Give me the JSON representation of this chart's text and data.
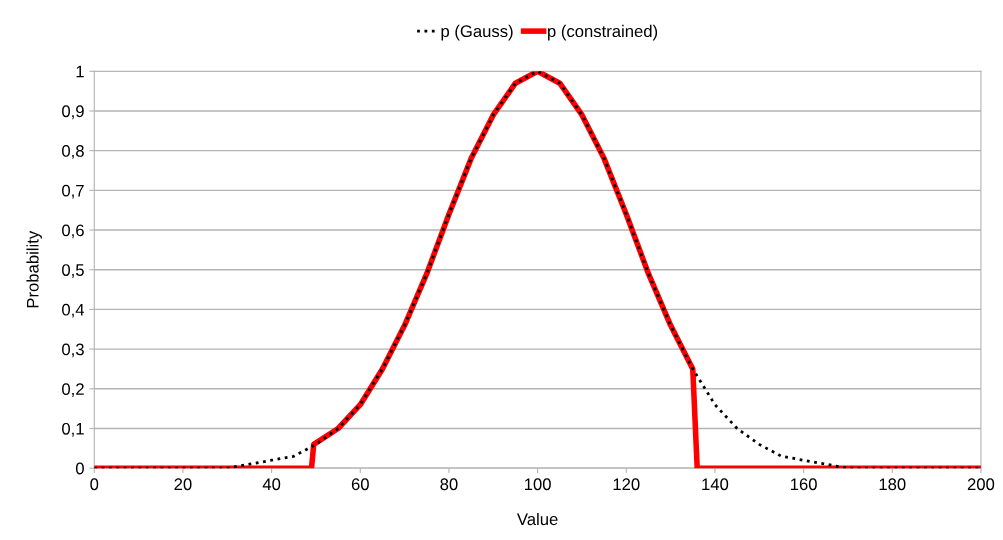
{
  "chart_data": {
    "type": "line",
    "xlabel": "Value",
    "ylabel": "Probability",
    "series": [
      {
        "name": "p (Gauss)",
        "color": "#000000",
        "line_style": "dotted",
        "x": [
          0,
          5,
          10,
          15,
          20,
          25,
          30,
          35,
          40,
          45,
          50,
          55,
          60,
          65,
          70,
          75,
          80,
          85,
          90,
          95,
          100,
          105,
          110,
          115,
          120,
          125,
          130,
          135,
          140,
          145,
          150,
          155,
          160,
          165,
          170,
          175,
          180,
          185,
          190,
          195,
          200
        ],
        "values": [
          0,
          0,
          0,
          0,
          0,
          0,
          0,
          0.01,
          0.02,
          0.03,
          0.06,
          0.1,
          0.16,
          0.25,
          0.36,
          0.49,
          0.64,
          0.78,
          0.89,
          0.97,
          1,
          0.97,
          0.89,
          0.78,
          0.64,
          0.49,
          0.36,
          0.25,
          0.16,
          0.1,
          0.06,
          0.03,
          0.02,
          0.01,
          0,
          0,
          0,
          0,
          0,
          0,
          0
        ]
      },
      {
        "name": "p (constrained)",
        "color": "#ff0000",
        "line_style": "solid",
        "x": [
          0,
          49,
          49.5,
          55,
          60,
          65,
          70,
          75,
          80,
          85,
          90,
          95,
          100,
          105,
          110,
          115,
          120,
          125,
          130,
          135,
          136,
          200
        ],
        "values": [
          0,
          0,
          0.06,
          0.1,
          0.16,
          0.25,
          0.36,
          0.49,
          0.64,
          0.78,
          0.89,
          0.97,
          1,
          0.97,
          0.89,
          0.78,
          0.64,
          0.49,
          0.36,
          0.25,
          0,
          0
        ]
      }
    ],
    "xlim": [
      0,
      200
    ],
    "xticks": [
      0,
      20,
      40,
      60,
      80,
      100,
      120,
      140,
      160,
      180,
      200
    ],
    "ylim": [
      0,
      1
    ],
    "yticks": [
      0,
      {
        "value": 0.1,
        "label": "0,1"
      },
      {
        "value": 0.2,
        "label": "0,2"
      },
      {
        "value": 0.3,
        "label": "0,3"
      },
      {
        "value": 0.4,
        "label": "0,4"
      },
      {
        "value": 0.5,
        "label": "0,5"
      },
      {
        "value": 0.6,
        "label": "0,6"
      },
      {
        "value": 0.7,
        "label": "0,7"
      },
      {
        "value": 0.8,
        "label": "0,8"
      },
      {
        "value": 0.9,
        "label": "0,9"
      },
      1
    ],
    "grid": "y",
    "legend": "top",
    "marker": "none"
  }
}
